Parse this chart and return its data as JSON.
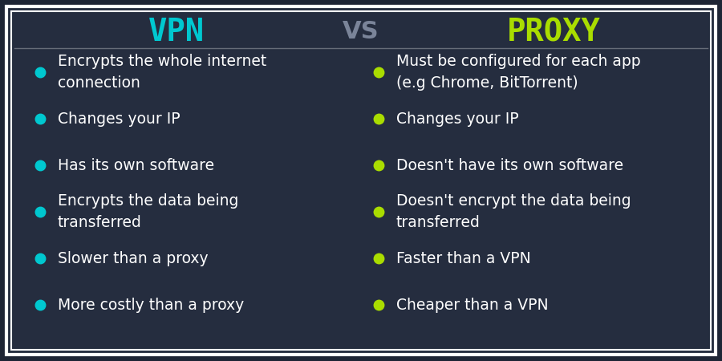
{
  "background_color": "#1e2535",
  "inner_bg_color": "#252d3f",
  "border_outer_color": "#ffffff",
  "border_inner_color": "#ffffff",
  "title_vpn": "VPN",
  "title_vs": "VS",
  "title_proxy": "PROXY",
  "title_vpn_color": "#00c8d0",
  "title_vs_color": "#7a8499",
  "title_proxy_color": "#aadd00",
  "title_fontsize": 28,
  "vs_fontsize": 22,
  "bullet_fontsize": 13.5,
  "text_color": "#ffffff",
  "vpn_bullet_color": "#00c8d0",
  "proxy_bullet_color": "#aadd00",
  "vpn_items": [
    "Encrypts the whole internet\nconnection",
    "Changes your IP",
    "Has its own software",
    "Encrypts the data being\ntransferred",
    "Slower than a proxy",
    "More costly than a proxy"
  ],
  "proxy_items": [
    "Must be configured for each app\n(e.g Chrome, BitTorrent)",
    "Changes your IP",
    "Doesn't have its own software",
    "Doesn't encrypt the data being\ntransferred",
    "Faster than a VPN",
    "Cheaper than a VPN"
  ]
}
